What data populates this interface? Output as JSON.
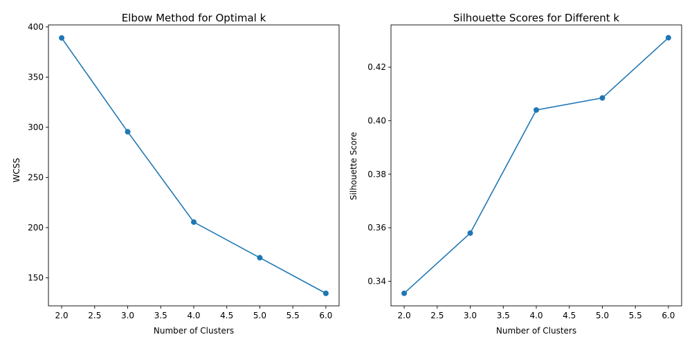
{
  "colors": {
    "series": "#1f77b4",
    "axes": "#000000",
    "background": "#ffffff"
  },
  "chart_data": [
    {
      "type": "line",
      "title": "Elbow Method for Optimal k",
      "xlabel": "Number of Clusters",
      "ylabel": "WCSS",
      "x": [
        2,
        3,
        4,
        5,
        6
      ],
      "series": [
        {
          "values": [
            389,
            295.5,
            205.5,
            170,
            134.5
          ]
        }
      ],
      "xlim": [
        1.8,
        6.2
      ],
      "ylim": [
        122,
        402
      ],
      "xticks": [
        2.0,
        2.5,
        3.0,
        3.5,
        4.0,
        4.5,
        5.0,
        5.5,
        6.0
      ],
      "xtick_labels": [
        "2.0",
        "2.5",
        "3.0",
        "3.5",
        "4.0",
        "4.5",
        "5.0",
        "5.5",
        "6.0"
      ],
      "yticks": [
        150,
        200,
        250,
        300,
        350,
        400
      ],
      "ytick_labels": [
        "150",
        "200",
        "250",
        "300",
        "350",
        "400"
      ],
      "marker": "circle",
      "grid": false
    },
    {
      "type": "line",
      "title": "Silhouette Scores for Different k",
      "xlabel": "Number of Clusters",
      "ylabel": "Silhouette Score",
      "x": [
        2,
        3,
        4,
        5,
        6
      ],
      "series": [
        {
          "values": [
            0.3355,
            0.358,
            0.404,
            0.4085,
            0.431
          ]
        }
      ],
      "xlim": [
        1.8,
        6.2
      ],
      "ylim": [
        0.3308,
        0.4358
      ],
      "xticks": [
        2.0,
        2.5,
        3.0,
        3.5,
        4.0,
        4.5,
        5.0,
        5.5,
        6.0
      ],
      "xtick_labels": [
        "2.0",
        "2.5",
        "3.0",
        "3.5",
        "4.0",
        "4.5",
        "5.0",
        "5.5",
        "6.0"
      ],
      "yticks": [
        0.34,
        0.36,
        0.38,
        0.4,
        0.42
      ],
      "ytick_labels": [
        "0.34",
        "0.36",
        "0.38",
        "0.40",
        "0.42"
      ],
      "marker": "circle",
      "grid": false
    }
  ]
}
